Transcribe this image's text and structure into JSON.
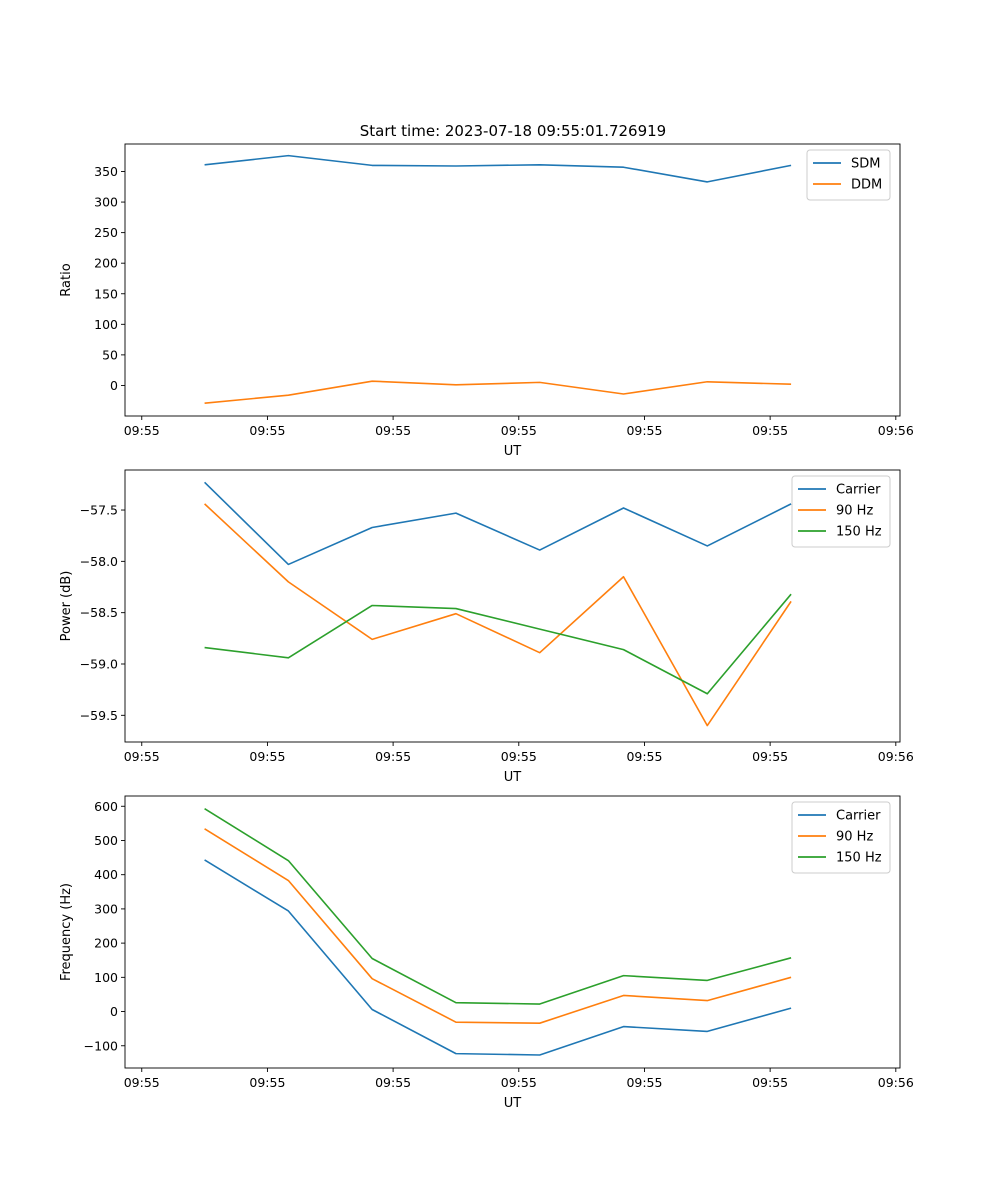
{
  "figure_title": "Start time: 2023-07-18 09:55:01.726919",
  "chart_data": [
    {
      "type": "line",
      "title": "Start time: 2023-07-18 09:55:01.726919",
      "xlabel": "UT",
      "ylabel": "Ratio",
      "xlim": [
        -0.95,
        8.3
      ],
      "ylim": [
        -50,
        395
      ],
      "x": [
        0,
        1,
        2,
        3,
        4,
        5,
        6,
        7
      ],
      "x_ticks": [
        -0.75,
        0.75,
        2.25,
        3.75,
        5.25,
        6.75,
        8.25
      ],
      "x_tick_labels": [
        "09:55",
        "09:55",
        "09:55",
        "09:55",
        "09:55",
        "09:55",
        "09:56"
      ],
      "y_ticks": [
        0,
        50,
        100,
        150,
        200,
        250,
        300,
        350
      ],
      "y_tick_labels": [
        "0",
        "50",
        "100",
        "150",
        "200",
        "250",
        "300",
        "350"
      ],
      "legend_position": "top-right",
      "series": [
        {
          "name": "SDM",
          "color": "#1f77b4",
          "values": [
            361,
            376,
            360,
            359,
            361,
            357,
            333,
            360
          ]
        },
        {
          "name": "DDM",
          "color": "#ff7f0e",
          "values": [
            -29,
            -16,
            7,
            1,
            5,
            -14,
            6,
            2
          ]
        }
      ]
    },
    {
      "type": "line",
      "title": "",
      "xlabel": "UT",
      "ylabel": "Power (dB)",
      "xlim": [
        -0.95,
        8.3
      ],
      "ylim": [
        -59.76,
        -57.11
      ],
      "x": [
        0,
        1,
        2,
        3,
        4,
        5,
        6,
        7
      ],
      "x_ticks": [
        -0.75,
        0.75,
        2.25,
        3.75,
        5.25,
        6.75,
        8.25
      ],
      "x_tick_labels": [
        "09:55",
        "09:55",
        "09:55",
        "09:55",
        "09:55",
        "09:55",
        "09:56"
      ],
      "y_ticks": [
        -59.5,
        -59.0,
        -58.5,
        -58.0,
        -57.5
      ],
      "y_tick_labels": [
        "−59.5",
        "−59.0",
        "−58.5",
        "−58.0",
        "−57.5"
      ],
      "legend_position": "top-right",
      "series": [
        {
          "name": "Carrier",
          "color": "#1f77b4",
          "values": [
            -57.23,
            -58.03,
            -57.67,
            -57.53,
            -57.89,
            -57.48,
            -57.85,
            -57.44
          ]
        },
        {
          "name": "90 Hz",
          "color": "#ff7f0e",
          "values": [
            -57.44,
            -58.2,
            -58.76,
            -58.51,
            -58.89,
            -58.15,
            -59.6,
            -58.39
          ]
        },
        {
          "name": "150 Hz",
          "color": "#2ca02c",
          "values": [
            -58.84,
            -58.94,
            -58.43,
            -58.46,
            -58.66,
            -58.86,
            -59.29,
            -58.32
          ]
        }
      ]
    },
    {
      "type": "line",
      "title": "",
      "xlabel": "UT",
      "ylabel": "Frequency (Hz)",
      "xlim": [
        -0.95,
        8.3
      ],
      "ylim": [
        -165,
        630
      ],
      "x": [
        0,
        1,
        2,
        3,
        4,
        5,
        6,
        7
      ],
      "x_ticks": [
        -0.75,
        0.75,
        2.25,
        3.75,
        5.25,
        6.75,
        8.25
      ],
      "x_tick_labels": [
        "09:55",
        "09:55",
        "09:55",
        "09:55",
        "09:55",
        "09:55",
        "09:56"
      ],
      "y_ticks": [
        -100,
        0,
        100,
        200,
        300,
        400,
        500,
        600
      ],
      "y_tick_labels": [
        "−100",
        "0",
        "100",
        "200",
        "300",
        "400",
        "500",
        "600"
      ],
      "legend_position": "top-right",
      "series": [
        {
          "name": "Carrier",
          "color": "#1f77b4",
          "values": [
            443,
            294,
            6,
            -123,
            -127,
            -44,
            -58,
            10
          ]
        },
        {
          "name": "90 Hz",
          "color": "#ff7f0e",
          "values": [
            534,
            383,
            96,
            -31,
            -34,
            47,
            32,
            100
          ]
        },
        {
          "name": "150 Hz",
          "color": "#2ca02c",
          "values": [
            593,
            441,
            155,
            26,
            22,
            105,
            91,
            157
          ]
        }
      ]
    }
  ]
}
